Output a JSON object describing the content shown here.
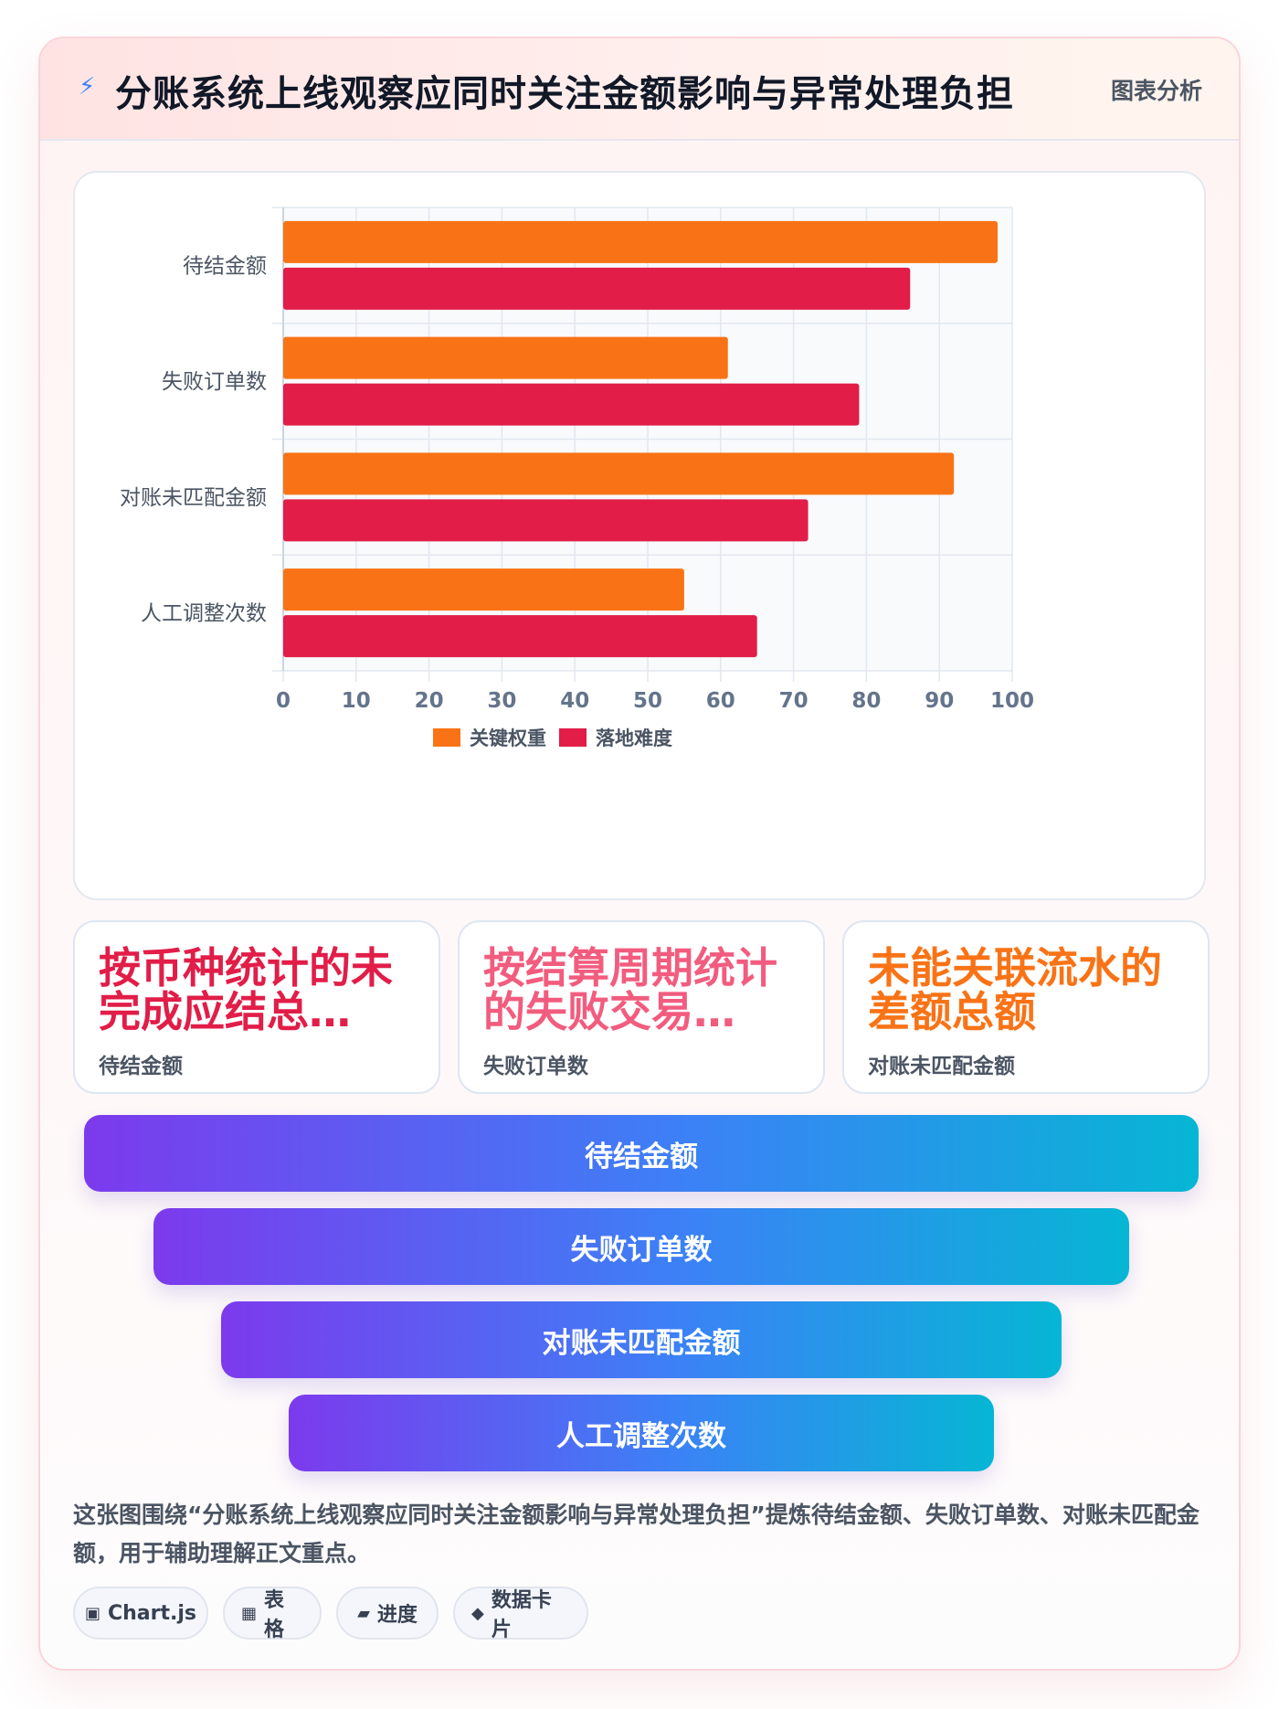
{
  "header": {
    "icon": "lightning-icon",
    "title": "分账系统上线观察应同时关注金额影响与异常处理负担",
    "tag": "图表分析"
  },
  "chart_data": {
    "type": "bar",
    "orientation": "horizontal",
    "categories": [
      "待结金额",
      "失败订单数",
      "对账未匹配金额",
      "人工调整次数"
    ],
    "series": [
      {
        "name": "关键权重",
        "color": "#f97316",
        "values": [
          98,
          61,
          92,
          55
        ]
      },
      {
        "name": "落地难度",
        "color": "#e11d48",
        "values": [
          86,
          79,
          72,
          65
        ]
      }
    ],
    "xlim": [
      0,
      100
    ],
    "xticks": [
      0,
      10,
      20,
      30,
      40,
      50,
      60,
      70,
      80,
      90,
      100
    ],
    "grid": true,
    "legend_position": "bottom"
  },
  "stats": [
    {
      "value": "按币种统计的未完成应结总…",
      "label": "待结金额",
      "color": "#e11d48"
    },
    {
      "value": "按结算周期统计的失败交易…",
      "label": "失败订单数",
      "color": "#f25c7e"
    },
    {
      "value": "未能关联流水的差额总额",
      "label": "对账未匹配金额",
      "color": "#f97316"
    }
  ],
  "funnel": [
    "待结金额",
    "失败订单数",
    "对账未匹配金额",
    "人工调整次数"
  ],
  "description": "这张图围绕“分账系统上线观察应同时关注金额影响与异常处理负担”提炼待结金额、失败订单数、对账未匹配金额，用于辅助理解正文重点。",
  "chips": [
    {
      "icon": "▣",
      "icon_name": "chart-icon",
      "label": "Chart.js"
    },
    {
      "icon": "▦",
      "icon_name": "table-icon",
      "label": "表格"
    },
    {
      "icon": "▰",
      "icon_name": "progress-icon",
      "label": "进度"
    },
    {
      "icon": "◆",
      "icon_name": "data-card-icon",
      "label": "数据卡片"
    }
  ]
}
